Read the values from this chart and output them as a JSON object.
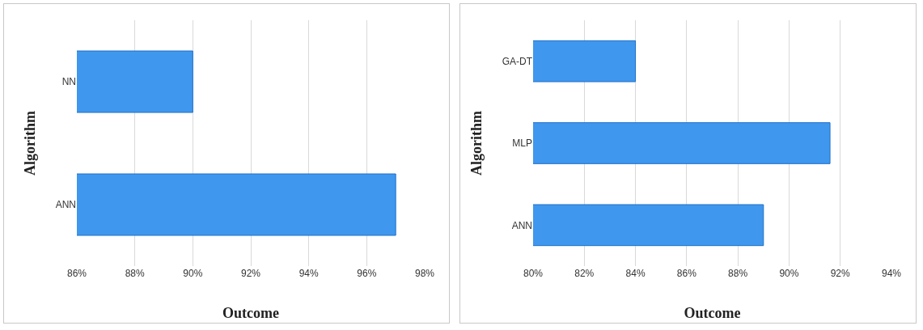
{
  "chart_data": [
    {
      "type": "bar",
      "orientation": "horizontal",
      "categories": [
        "NN",
        "ANN"
      ],
      "values": [
        90,
        97
      ],
      "color": "#3f97ee",
      "xlim": [
        86,
        98
      ],
      "xticks": [
        {
          "value": 86,
          "label": "86%"
        },
        {
          "value": 88,
          "label": "88%"
        },
        {
          "value": 90,
          "label": "90%"
        },
        {
          "value": 92,
          "label": "92%"
        },
        {
          "value": 94,
          "label": "94%"
        },
        {
          "value": 96,
          "label": "96%"
        },
        {
          "value": 98,
          "label": "98%"
        }
      ],
      "xlabel": "Outcome",
      "ylabel": "Algorithm",
      "grid": "x"
    },
    {
      "type": "bar",
      "orientation": "horizontal",
      "categories": [
        "GA-DT",
        "MLP",
        "ANN"
      ],
      "values": [
        84,
        91.6,
        89
      ],
      "color": "#3f97ee",
      "xlim": [
        80,
        94
      ],
      "xticks": [
        {
          "value": 80,
          "label": "80%"
        },
        {
          "value": 82,
          "label": "82%"
        },
        {
          "value": 84,
          "label": "84%"
        },
        {
          "value": 86,
          "label": "86%"
        },
        {
          "value": 88,
          "label": "88%"
        },
        {
          "value": 90,
          "label": "90%"
        },
        {
          "value": 92,
          "label": "92%"
        },
        {
          "value": 94,
          "label": "94%"
        }
      ],
      "xlabel": "Outcome",
      "ylabel": "Algorithm",
      "grid": "x"
    }
  ]
}
